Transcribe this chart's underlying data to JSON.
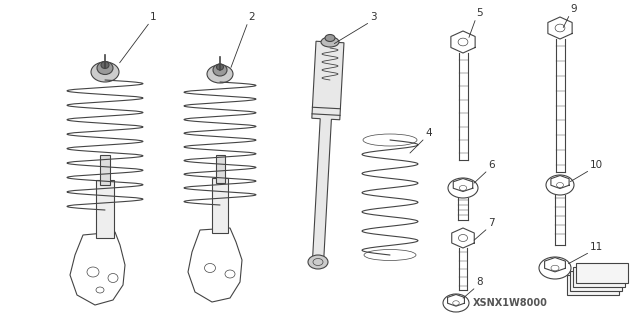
{
  "background_color": "#ffffff",
  "diagram_code": "XSNX1W8000",
  "line_color": "#444444",
  "text_color": "#333333",
  "font_size": 7.5,
  "figsize": [
    6.4,
    3.19
  ],
  "dpi": 100
}
